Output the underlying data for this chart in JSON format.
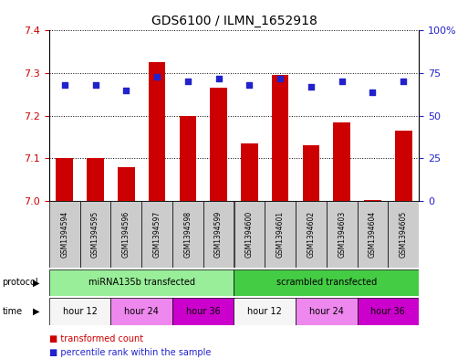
{
  "title": "GDS6100 / ILMN_1652918",
  "samples": [
    "GSM1394594",
    "GSM1394595",
    "GSM1394596",
    "GSM1394597",
    "GSM1394598",
    "GSM1394599",
    "GSM1394600",
    "GSM1394601",
    "GSM1394602",
    "GSM1394603",
    "GSM1394604",
    "GSM1394605"
  ],
  "bar_values": [
    7.1,
    7.1,
    7.08,
    7.325,
    7.2,
    7.265,
    7.135,
    7.295,
    7.13,
    7.185,
    7.002,
    7.165
  ],
  "blue_dot_pct": [
    68,
    68,
    65,
    73,
    70,
    72,
    68,
    72,
    67,
    70,
    64,
    70
  ],
  "y_min": 7.0,
  "y_max": 7.4,
  "y_ticks_left": [
    7.0,
    7.1,
    7.2,
    7.3,
    7.4
  ],
  "y_ticks_right_pct": [
    0,
    25,
    50,
    75,
    100
  ],
  "bar_color": "#cc0000",
  "dot_color": "#2222cc",
  "bar_base": 7.0,
  "protocol_groups": [
    {
      "label": "miRNA135b transfected",
      "start": 0,
      "end": 6,
      "color": "#99ee99"
    },
    {
      "label": "scrambled transfected",
      "start": 6,
      "end": 12,
      "color": "#44cc44"
    }
  ],
  "time_groups": [
    {
      "label": "hour 12",
      "start": 0,
      "end": 2,
      "color": "#f5f5f5"
    },
    {
      "label": "hour 24",
      "start": 2,
      "end": 4,
      "color": "#ee88ee"
    },
    {
      "label": "hour 36",
      "start": 4,
      "end": 6,
      "color": "#cc00cc"
    },
    {
      "label": "hour 12",
      "start": 6,
      "end": 8,
      "color": "#f5f5f5"
    },
    {
      "label": "hour 24",
      "start": 8,
      "end": 10,
      "color": "#ee88ee"
    },
    {
      "label": "hour 36",
      "start": 10,
      "end": 12,
      "color": "#cc00cc"
    }
  ],
  "legend_items": [
    {
      "label": "transformed count",
      "color": "#cc0000"
    },
    {
      "label": "percentile rank within the sample",
      "color": "#2222cc"
    }
  ],
  "sample_box_color": "#cccccc",
  "left_axis_color": "#cc0000",
  "right_axis_color": "#2222cc"
}
